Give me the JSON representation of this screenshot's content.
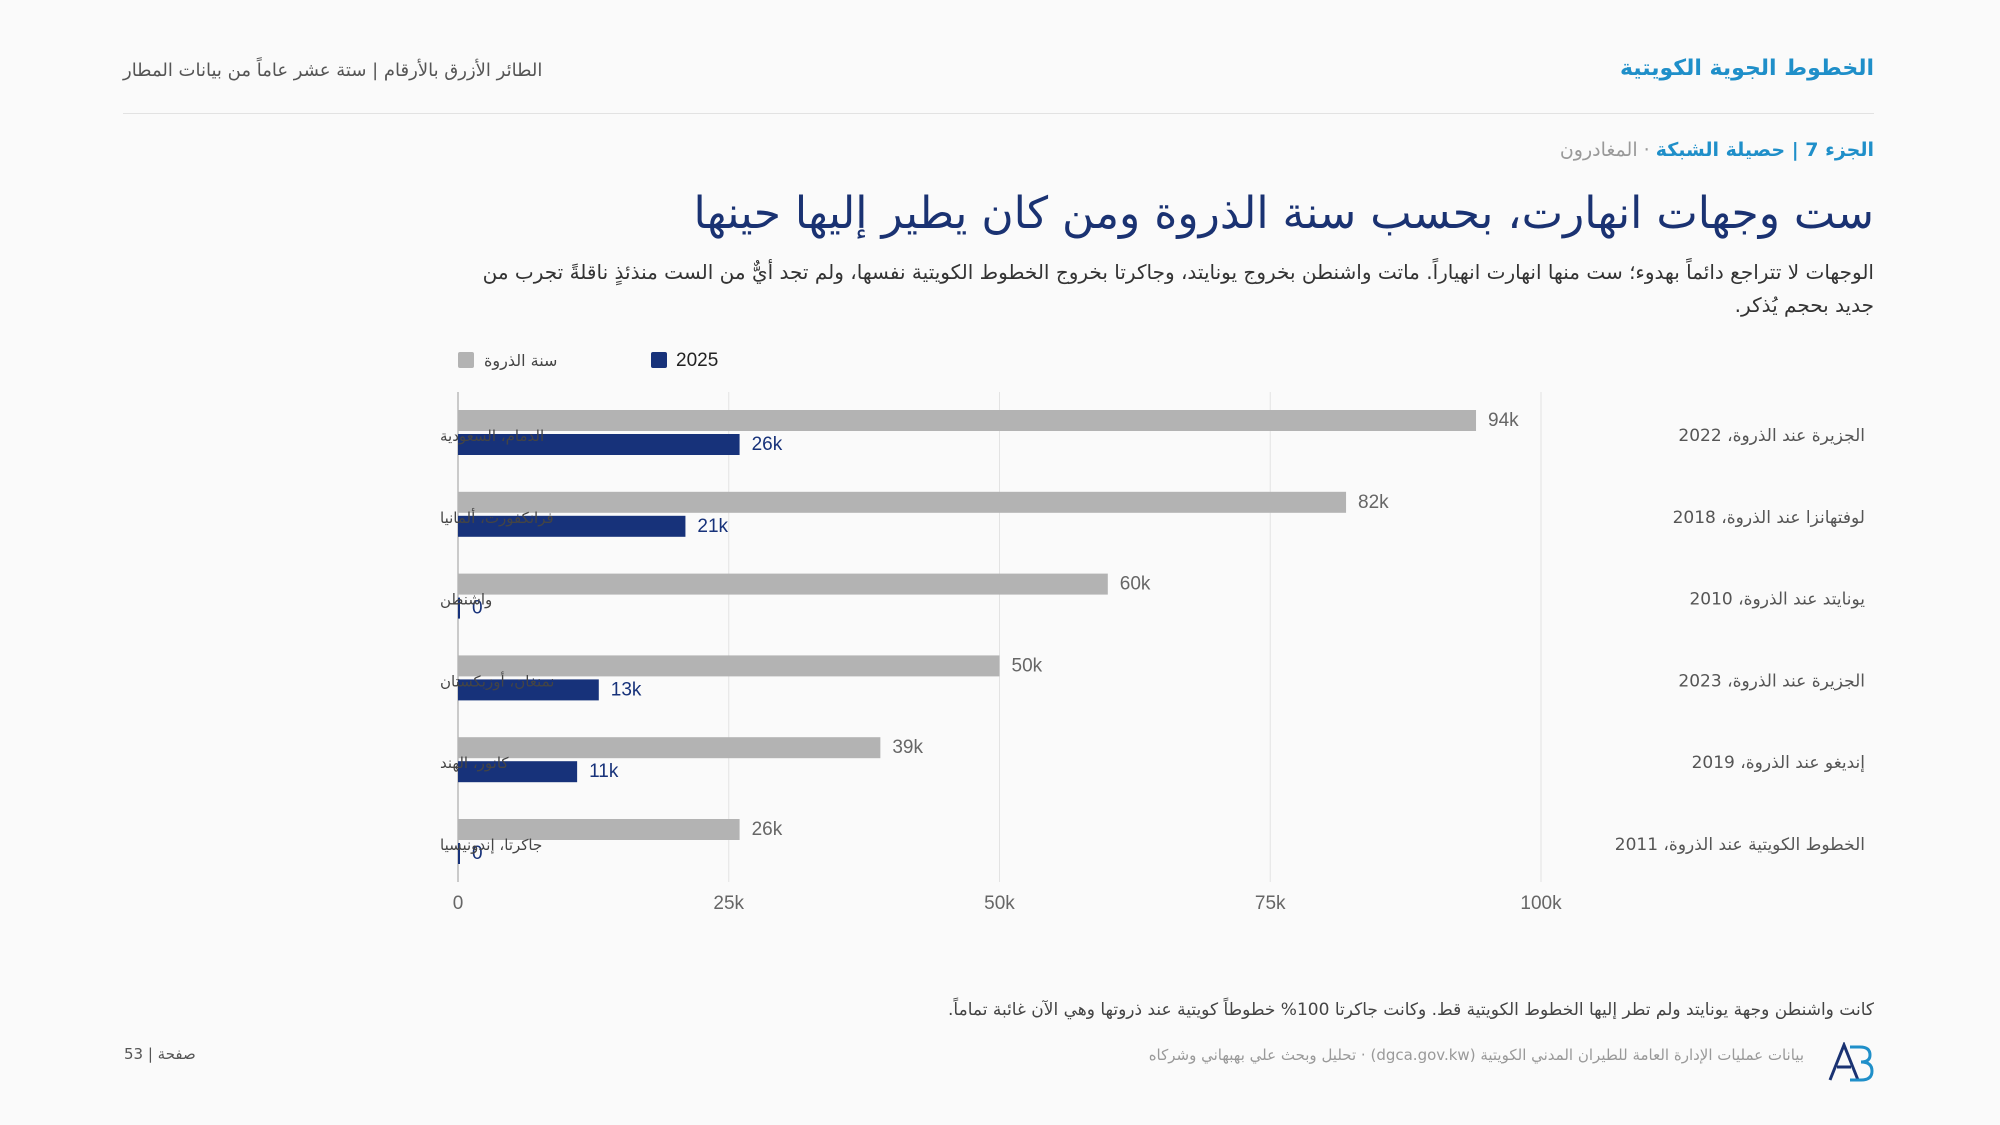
{
  "header": {
    "brand": "الخطوط الجوية الكويتية",
    "report_title": "الطائر الأزرق بالأرقام | ستة عشر عاماً من بيانات المطار"
  },
  "section": {
    "label": "الجزء 7 | حصيلة الشبكة",
    "sub": " · المغادرون"
  },
  "headline": "ست وجهات انهارت، بحسب سنة الذروة ومن كان يطير إليها حينها",
  "subheadline": "الوجهات لا تتراجع دائماً بهدوء؛ ست منها انهارت انهياراً. ماتت واشنطن بخروج يونايتد، وجاكرتا بخروج الخطوط الكويتية نفسها، ولم تجد أيٌّ من الست منذئذٍ ناقلةً تجرب من جديد بحجم يُذكر.",
  "colors": {
    "peak": "#b3b3b3",
    "current": "#17327a",
    "accent": "#1f8fc9"
  },
  "chart_data": {
    "type": "bar",
    "orientation": "horizontal",
    "categories": [
      "الدمام، السعودية",
      "فرانكفورت، ألمانيا",
      "واشنطن",
      "نمنغان، أوزبكستان",
      "كانور، الهند",
      "جاكرتا، إندونيسيا"
    ],
    "series": [
      {
        "name": "سنة الذروة",
        "values": [
          94000,
          82000,
          60000,
          50000,
          39000,
          26000
        ],
        "labels": [
          "94k",
          "82k",
          "60k",
          "50k",
          "39k",
          "26k"
        ]
      },
      {
        "name": "2025",
        "values": [
          26000,
          21000,
          0,
          13000,
          11000,
          0
        ],
        "labels": [
          "26k",
          "21k",
          "0",
          "13k",
          "11k",
          "0"
        ]
      }
    ],
    "annotations": [
      "الجزيرة عند الذروة، 2022",
      "لوفتهانزا عند الذروة، 2018",
      "يونايتد عند الذروة، 2010",
      "الجزيرة عند الذروة، 2023",
      "إنديغو عند الذروة، 2019",
      "الخطوط الكويتية عند الذروة، 2011"
    ],
    "xlim": [
      0,
      100000
    ],
    "xticks": [
      0,
      25000,
      50000,
      75000,
      100000
    ],
    "xtick_labels": [
      "0",
      "25k",
      "50k",
      "75k",
      "100k"
    ],
    "grid": "vertical",
    "legend": "top-left"
  },
  "footnote": "كانت واشنطن وجهة يونايتد ولم تطر إليها الخطوط الكويتية قط. وكانت جاكرتا 100% خطوطاً كويتية عند ذروتها وهي الآن غائبة تماماً.",
  "source": "بيانات عمليات الإدارة العامة للطيران المدني الكويتية (dgca.gov.kw) · تحليل وبحث علي بهبهاني وشركاه",
  "page_number": "صفحة | 53",
  "logo_icon": "ab-monogram-icon"
}
